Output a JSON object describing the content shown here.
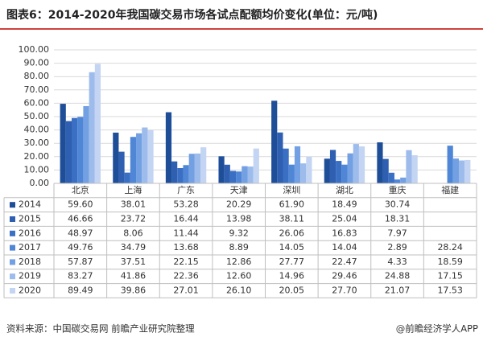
{
  "chart_data": {
    "type": "bar",
    "title": "图表6：2014-2020年我国碳交易市场各试点配额均价变化(单位：元/吨)",
    "source": "资料来源：中国碳交易网 前瞻产业研究院整理",
    "credit": "@前瞻经济学人APP",
    "categories": [
      "北京",
      "上海",
      "广东",
      "天津",
      "深圳",
      "湖北",
      "重庆",
      "福建"
    ],
    "ylim": [
      0,
      100
    ],
    "yticks": [
      {
        "value": 0,
        "label": "0.00"
      },
      {
        "value": 10,
        "label": "10.00"
      },
      {
        "value": 20,
        "label": "20.00"
      },
      {
        "value": 30,
        "label": "30.00"
      },
      {
        "value": 40,
        "label": "40.00"
      },
      {
        "value": 50,
        "label": "50.00"
      },
      {
        "value": 60,
        "label": "60.00"
      },
      {
        "value": 70,
        "label": "70.00"
      },
      {
        "value": 80,
        "label": "80.00"
      },
      {
        "value": 90,
        "label": "90.00"
      },
      {
        "value": 100,
        "label": "100.00"
      }
    ],
    "grid": true,
    "series": [
      {
        "name": "2014",
        "color": "#1f4e99",
        "values": [
          59.6,
          38.01,
          53.28,
          20.29,
          61.9,
          18.49,
          30.74,
          null
        ],
        "value_labels": [
          "59.60",
          "38.01",
          "53.28",
          "20.29",
          "61.90",
          "18.49",
          "30.74",
          null
        ]
      },
      {
        "name": "2015",
        "color": "#2e5fb0",
        "values": [
          46.66,
          23.72,
          16.44,
          13.98,
          38.11,
          25.04,
          18.31,
          null
        ],
        "value_labels": [
          "46.66",
          "23.72",
          "16.44",
          "13.98",
          "38.11",
          "25.04",
          "18.31",
          null
        ]
      },
      {
        "name": "2016",
        "color": "#3a6fc4",
        "values": [
          48.97,
          8.06,
          11.44,
          9.32,
          26.06,
          16.83,
          7.97,
          null
        ],
        "value_labels": [
          "48.97",
          "8.06",
          "11.44",
          "9.32",
          "26.06",
          "16.83",
          "7.97",
          null
        ]
      },
      {
        "name": "2017",
        "color": "#4f86d6",
        "values": [
          49.76,
          34.79,
          13.68,
          8.89,
          14.05,
          14.04,
          2.89,
          28.24
        ],
        "value_labels": [
          "49.76",
          "34.79",
          "13.68",
          "8.89",
          "14.05",
          "14.04",
          "2.89",
          "28.24"
        ]
      },
      {
        "name": "2018",
        "color": "#72a0e2",
        "values": [
          57.87,
          37.51,
          22.15,
          12.86,
          27.77,
          22.47,
          4.33,
          18.59
        ],
        "value_labels": [
          "57.87",
          "37.51",
          "22.15",
          "12.86",
          "27.77",
          "22.47",
          "4.33",
          "18.59"
        ]
      },
      {
        "name": "2019",
        "color": "#9dbcec",
        "values": [
          83.27,
          41.86,
          22.36,
          12.6,
          14.96,
          29.46,
          24.88,
          17.15
        ],
        "value_labels": [
          "83.27",
          "41.86",
          "22.36",
          "12.60",
          "14.96",
          "29.46",
          "24.88",
          "17.15"
        ]
      },
      {
        "name": "2020",
        "color": "#c3d5f3",
        "values": [
          89.49,
          39.86,
          27.01,
          26.1,
          20.05,
          27.7,
          21.07,
          17.53
        ],
        "value_labels": [
          "89.49",
          "39.86",
          "27.01",
          "26.10",
          "20.05",
          "27.70",
          "21.07",
          "17.53"
        ]
      }
    ]
  }
}
